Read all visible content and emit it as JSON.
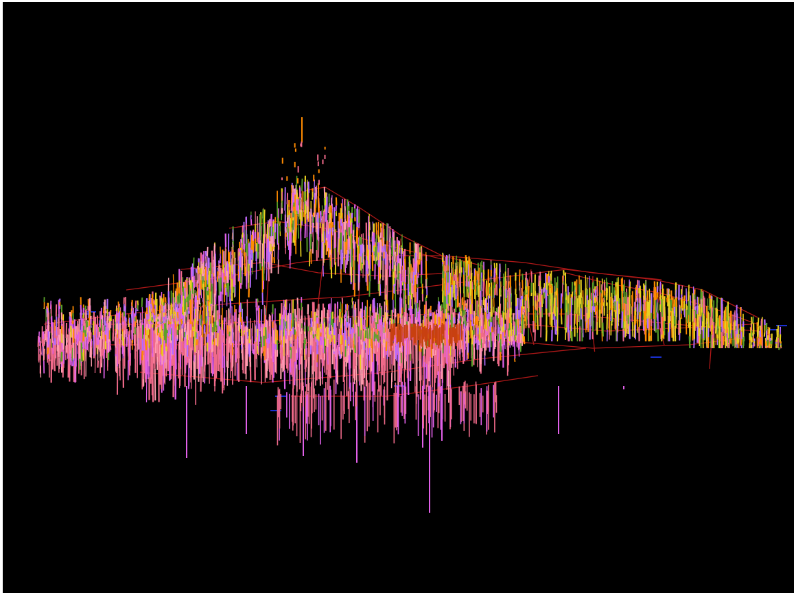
{
  "scene": {
    "kind": "3d-drillhole-view",
    "background_color": "#000000",
    "frame_color": "#ffffff",
    "trace_colors": {
      "section_lines": "#b01818",
      "interval_primary": "#f06a8a",
      "interval_light": "#ff9fb0",
      "interval_magenta": "#e060e8",
      "interval_violet": "#b46cff",
      "interval_green": "#5aa028",
      "interval_yellow": "#e8d020",
      "interval_orange": "#ff8a00",
      "interval_dark_orange": "#c84010",
      "collars": "#1a30d0"
    }
  }
}
